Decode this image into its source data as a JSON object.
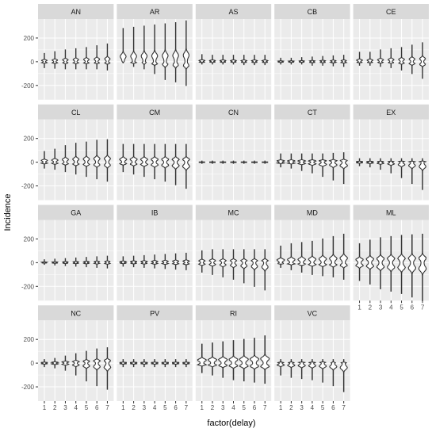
{
  "chart_data": {
    "type": "violin-facet",
    "xlabel": "factor(delay)",
    "ylabel": "Incidence",
    "x_categories": [
      "1",
      "2",
      "3",
      "4",
      "5",
      "6",
      "7"
    ],
    "ylim": [
      -320,
      360
    ],
    "y_ticks": [
      -200,
      0,
      200
    ],
    "y_tick_labels": [
      "-200",
      "0",
      "200"
    ],
    "grid": true,
    "ncol": 5,
    "colors": {
      "panel": "#ebebeb",
      "strip": "#d9d9d9",
      "grid": "#ffffff",
      "violin": "#333333"
    },
    "facets": [
      {
        "label": "AN",
        "min": [
          -50,
          -55,
          -60,
          -60,
          -60,
          -60,
          -70
        ],
        "max": [
          70,
          85,
          100,
          110,
          120,
          135,
          150
        ],
        "width": [
          0.26,
          0.26,
          0.26,
          0.26,
          0.26,
          0.26,
          0.26
        ]
      },
      {
        "label": "AR",
        "min": [
          -10,
          -40,
          -60,
          -100,
          -150,
          -170,
          -200
        ],
        "max": [
          280,
          290,
          300,
          310,
          320,
          330,
          345
        ],
        "width": [
          0.28,
          0.28,
          0.28,
          0.28,
          0.28,
          0.28,
          0.28
        ]
      },
      {
        "label": "AS",
        "min": [
          -20,
          -20,
          -20,
          -20,
          -25,
          -25,
          -25
        ],
        "max": [
          60,
          55,
          55,
          55,
          55,
          55,
          55
        ],
        "width": [
          0.28,
          0.28,
          0.28,
          0.28,
          0.28,
          0.28,
          0.28
        ]
      },
      {
        "label": "CB",
        "min": [
          -20,
          -20,
          -20,
          -30,
          -30,
          -35,
          -40
        ],
        "max": [
          30,
          30,
          35,
          40,
          45,
          50,
          55
        ],
        "width": [
          0.26,
          0.26,
          0.26,
          0.26,
          0.26,
          0.26,
          0.26
        ]
      },
      {
        "label": "CE",
        "min": [
          -30,
          -30,
          -40,
          -50,
          -70,
          -100,
          -140
        ],
        "max": [
          80,
          80,
          100,
          110,
          120,
          140,
          160
        ],
        "width": [
          0.28,
          0.28,
          0.28,
          0.28,
          0.28,
          0.28,
          0.28
        ]
      },
      {
        "label": "CL",
        "min": [
          -50,
          -60,
          -80,
          -100,
          -120,
          -140,
          -160
        ],
        "max": [
          90,
          110,
          140,
          160,
          170,
          185,
          190
        ],
        "width": [
          0.3,
          0.3,
          0.3,
          0.3,
          0.3,
          0.3,
          0.3
        ]
      },
      {
        "label": "CM",
        "min": [
          -80,
          -100,
          -120,
          -140,
          -160,
          -190,
          -220
        ],
        "max": [
          150,
          150,
          150,
          150,
          150,
          150,
          150
        ],
        "width": [
          0.34,
          0.34,
          0.34,
          0.34,
          0.34,
          0.34,
          0.34
        ]
      },
      {
        "label": "CN",
        "min": [
          -10,
          -10,
          -10,
          -10,
          -10,
          -10,
          -10
        ],
        "max": [
          10,
          10,
          10,
          10,
          10,
          10,
          10
        ],
        "width": [
          0.3,
          0.3,
          0.3,
          0.3,
          0.3,
          0.3,
          0.3
        ]
      },
      {
        "label": "CT",
        "min": [
          -40,
          -50,
          -70,
          -90,
          -120,
          -150,
          -180
        ],
        "max": [
          70,
          70,
          70,
          70,
          70,
          75,
          80
        ],
        "width": [
          0.36,
          0.36,
          0.36,
          0.36,
          0.36,
          0.36,
          0.36
        ]
      },
      {
        "label": "EX",
        "min": [
          -30,
          -40,
          -60,
          -90,
          -130,
          -180,
          -230
        ],
        "max": [
          30,
          30,
          30,
          30,
          30,
          30,
          30
        ],
        "width": [
          0.32,
          0.32,
          0.32,
          0.32,
          0.32,
          0.32,
          0.32
        ]
      },
      {
        "label": "GA",
        "min": [
          -15,
          -20,
          -25,
          -30,
          -35,
          -40,
          -45
        ],
        "max": [
          25,
          30,
          35,
          40,
          45,
          50,
          55
        ],
        "width": [
          0.26,
          0.26,
          0.26,
          0.26,
          0.26,
          0.26,
          0.26
        ]
      },
      {
        "label": "IB",
        "min": [
          -30,
          -35,
          -40,
          -45,
          -50,
          -55,
          -60
        ],
        "max": [
          50,
          55,
          60,
          65,
          70,
          75,
          80
        ],
        "width": [
          0.3,
          0.3,
          0.3,
          0.3,
          0.3,
          0.3,
          0.3
        ]
      },
      {
        "label": "MC",
        "min": [
          -80,
          -100,
          -120,
          -140,
          -170,
          -200,
          -230
        ],
        "max": [
          100,
          110,
          110,
          110,
          110,
          110,
          110
        ],
        "width": [
          0.3,
          0.3,
          0.3,
          0.3,
          0.3,
          0.3,
          0.3
        ]
      },
      {
        "label": "MD",
        "min": [
          -40,
          -60,
          -80,
          -100,
          -110,
          -120,
          -140
        ],
        "max": [
          140,
          160,
          170,
          180,
          200,
          220,
          240
        ],
        "width": [
          0.36,
          0.36,
          0.36,
          0.36,
          0.36,
          0.36,
          0.36
        ]
      },
      {
        "label": "ML",
        "min": [
          -150,
          -180,
          -220,
          -240,
          -260,
          -290,
          -320
        ],
        "max": [
          160,
          190,
          210,
          220,
          230,
          235,
          240
        ],
        "width": [
          0.36,
          0.36,
          0.36,
          0.36,
          0.36,
          0.36,
          0.36
        ]
      },
      {
        "label": "NC",
        "min": [
          -30,
          -40,
          -60,
          -100,
          -150,
          -190,
          -220
        ],
        "max": [
          30,
          40,
          60,
          80,
          100,
          120,
          130
        ],
        "width": [
          0.32,
          0.32,
          0.32,
          0.32,
          0.32,
          0.32,
          0.32
        ]
      },
      {
        "label": "PV",
        "min": [
          -30,
          -30,
          -30,
          -30,
          -30,
          -30,
          -30
        ],
        "max": [
          30,
          30,
          30,
          30,
          30,
          30,
          30
        ],
        "width": [
          0.34,
          0.34,
          0.34,
          0.34,
          0.34,
          0.34,
          0.34
        ]
      },
      {
        "label": "RI",
        "min": [
          -80,
          -100,
          -120,
          -140,
          -150,
          -160,
          -170
        ],
        "max": [
          160,
          170,
          180,
          190,
          200,
          210,
          230
        ],
        "width": [
          0.42,
          0.42,
          0.42,
          0.42,
          0.42,
          0.42,
          0.42
        ]
      },
      {
        "label": "VC",
        "min": [
          -100,
          -120,
          -130,
          -140,
          -160,
          -190,
          -240
        ],
        "max": [
          30,
          30,
          30,
          30,
          30,
          30,
          30
        ],
        "width": [
          0.34,
          0.34,
          0.34,
          0.34,
          0.34,
          0.34,
          0.34
        ]
      }
    ]
  }
}
